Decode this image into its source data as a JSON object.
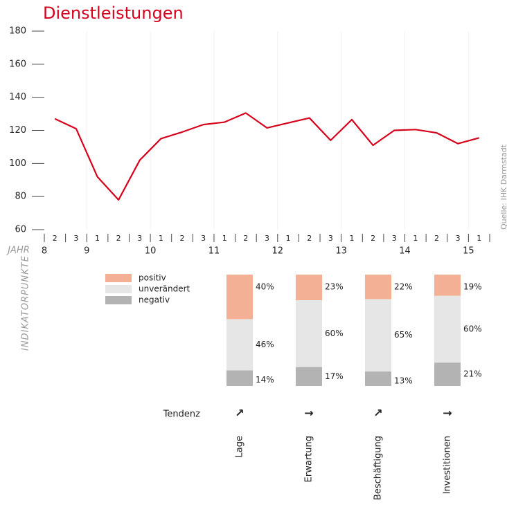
{
  "chart_data": [
    {
      "type": "line",
      "title": "Dienstleistungen",
      "x_label": "JAHR",
      "y_label": "INDIKATORPUNKTE",
      "source": "Quelle: IHK Darmstadt",
      "categories": [
        "2",
        "3",
        "1",
        "2",
        "3",
        "1",
        "2",
        "3",
        "1",
        "2",
        "3",
        "1",
        "2",
        "3",
        "1",
        "2",
        "3",
        "1",
        "2",
        "3",
        "1"
      ],
      "year_labels": [
        {
          "label": "8",
          "start": 0
        },
        {
          "label": "9",
          "start": 2
        },
        {
          "label": "10",
          "start": 5
        },
        {
          "label": "11",
          "start": 8
        },
        {
          "label": "12",
          "start": 11
        },
        {
          "label": "13",
          "start": 14
        },
        {
          "label": "14",
          "start": 17
        },
        {
          "label": "15",
          "start": 20
        }
      ],
      "series": [
        {
          "name": "Dienstleistungen",
          "color": "#d6001c",
          "values": [
            127,
            121,
            92,
            78,
            102,
            115,
            119,
            123.5,
            125,
            130.5,
            121.5,
            124.5,
            127.5,
            114,
            126.5,
            111,
            120,
            120.5,
            118.5,
            112,
            115.5
          ]
        }
      ],
      "ylim": [
        60,
        180
      ],
      "yticks": [
        60,
        80,
        100,
        120,
        140,
        160,
        180
      ]
    },
    {
      "type": "stacked_bar",
      "categories": [
        "Lage",
        "Erwartung",
        "Beschäftigung",
        "Investitionen"
      ],
      "series": [
        {
          "name": "negativ",
          "color": "#b3b3b3",
          "values": [
            14,
            17,
            13,
            21
          ],
          "value_labels": [
            "14%",
            "17%",
            "13%",
            "21%"
          ]
        },
        {
          "name": "unverändert",
          "color": "#e6e6e6",
          "values": [
            46,
            60,
            65,
            60
          ],
          "value_labels": [
            "46%",
            "60%",
            "65%",
            "60%"
          ]
        },
        {
          "name": "positiv",
          "color": "#f4b094",
          "values": [
            40,
            23,
            22,
            19
          ],
          "value_labels": [
            "40%",
            "23%",
            "22%",
            "19%"
          ]
        }
      ],
      "ylim": [
        0,
        100
      ],
      "tendency": {
        "label": "Tendenz",
        "values": [
          "↗",
          "→",
          "↗",
          "→"
        ]
      }
    }
  ]
}
